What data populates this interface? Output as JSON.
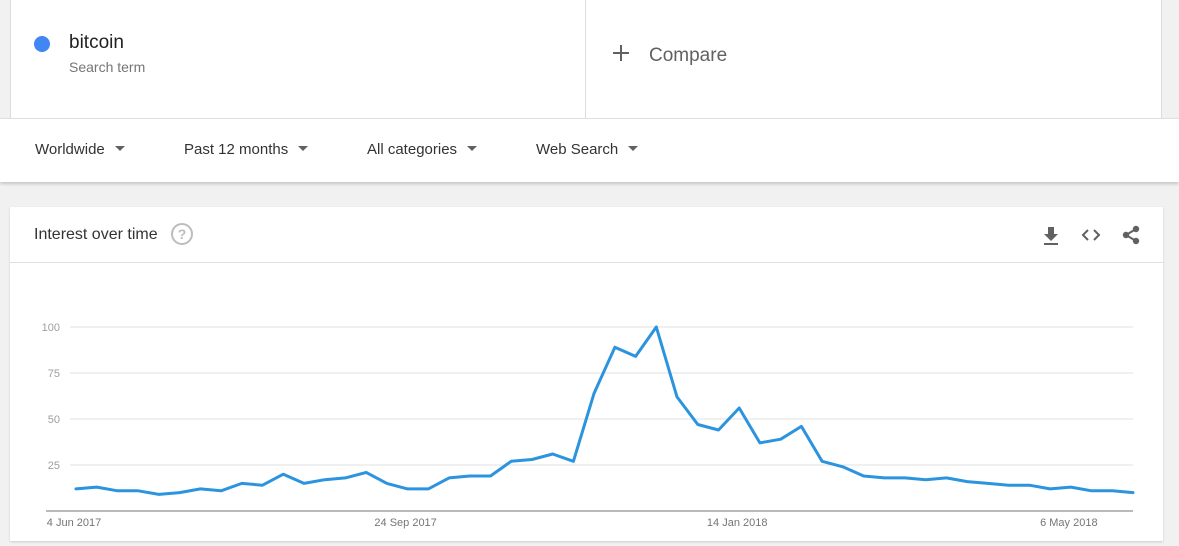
{
  "search_term": {
    "name": "bitcoin",
    "subtitle": "Search term",
    "color": "#4285f4"
  },
  "compare": {
    "label": "Compare",
    "icon": "plus-icon"
  },
  "filters": {
    "region": "Worldwide",
    "time_range": "Past 12 months",
    "category": "All categories",
    "search_type": "Web Search"
  },
  "panel": {
    "title": "Interest over time",
    "help_icon": "help-circle-icon",
    "actions": [
      "download-icon",
      "embed-code-icon",
      "share-icon"
    ]
  },
  "chart_data": {
    "type": "line",
    "title": "",
    "xlabel": "",
    "ylabel": "",
    "ylim": [
      0,
      100
    ],
    "yticks": [
      25,
      50,
      75,
      100
    ],
    "xticks": [
      "4 Jun 2017",
      "24 Sep 2017",
      "14 Jan 2018",
      "6 May 2018"
    ],
    "xtick_indices": [
      0,
      16,
      32,
      48
    ],
    "grid": true,
    "line_color": "#2c94de",
    "series": [
      {
        "values": [
          12,
          13,
          11,
          11,
          9,
          10,
          12,
          11,
          15,
          14,
          20,
          15,
          17,
          18,
          21,
          15,
          12,
          12,
          18,
          19,
          19,
          27,
          28,
          31,
          27,
          64,
          89,
          84,
          100,
          62,
          47,
          44,
          56,
          37,
          39,
          46,
          27,
          24,
          19,
          18,
          18,
          17,
          18,
          16,
          15,
          14,
          14,
          12,
          13,
          11,
          11,
          10
        ]
      }
    ]
  }
}
